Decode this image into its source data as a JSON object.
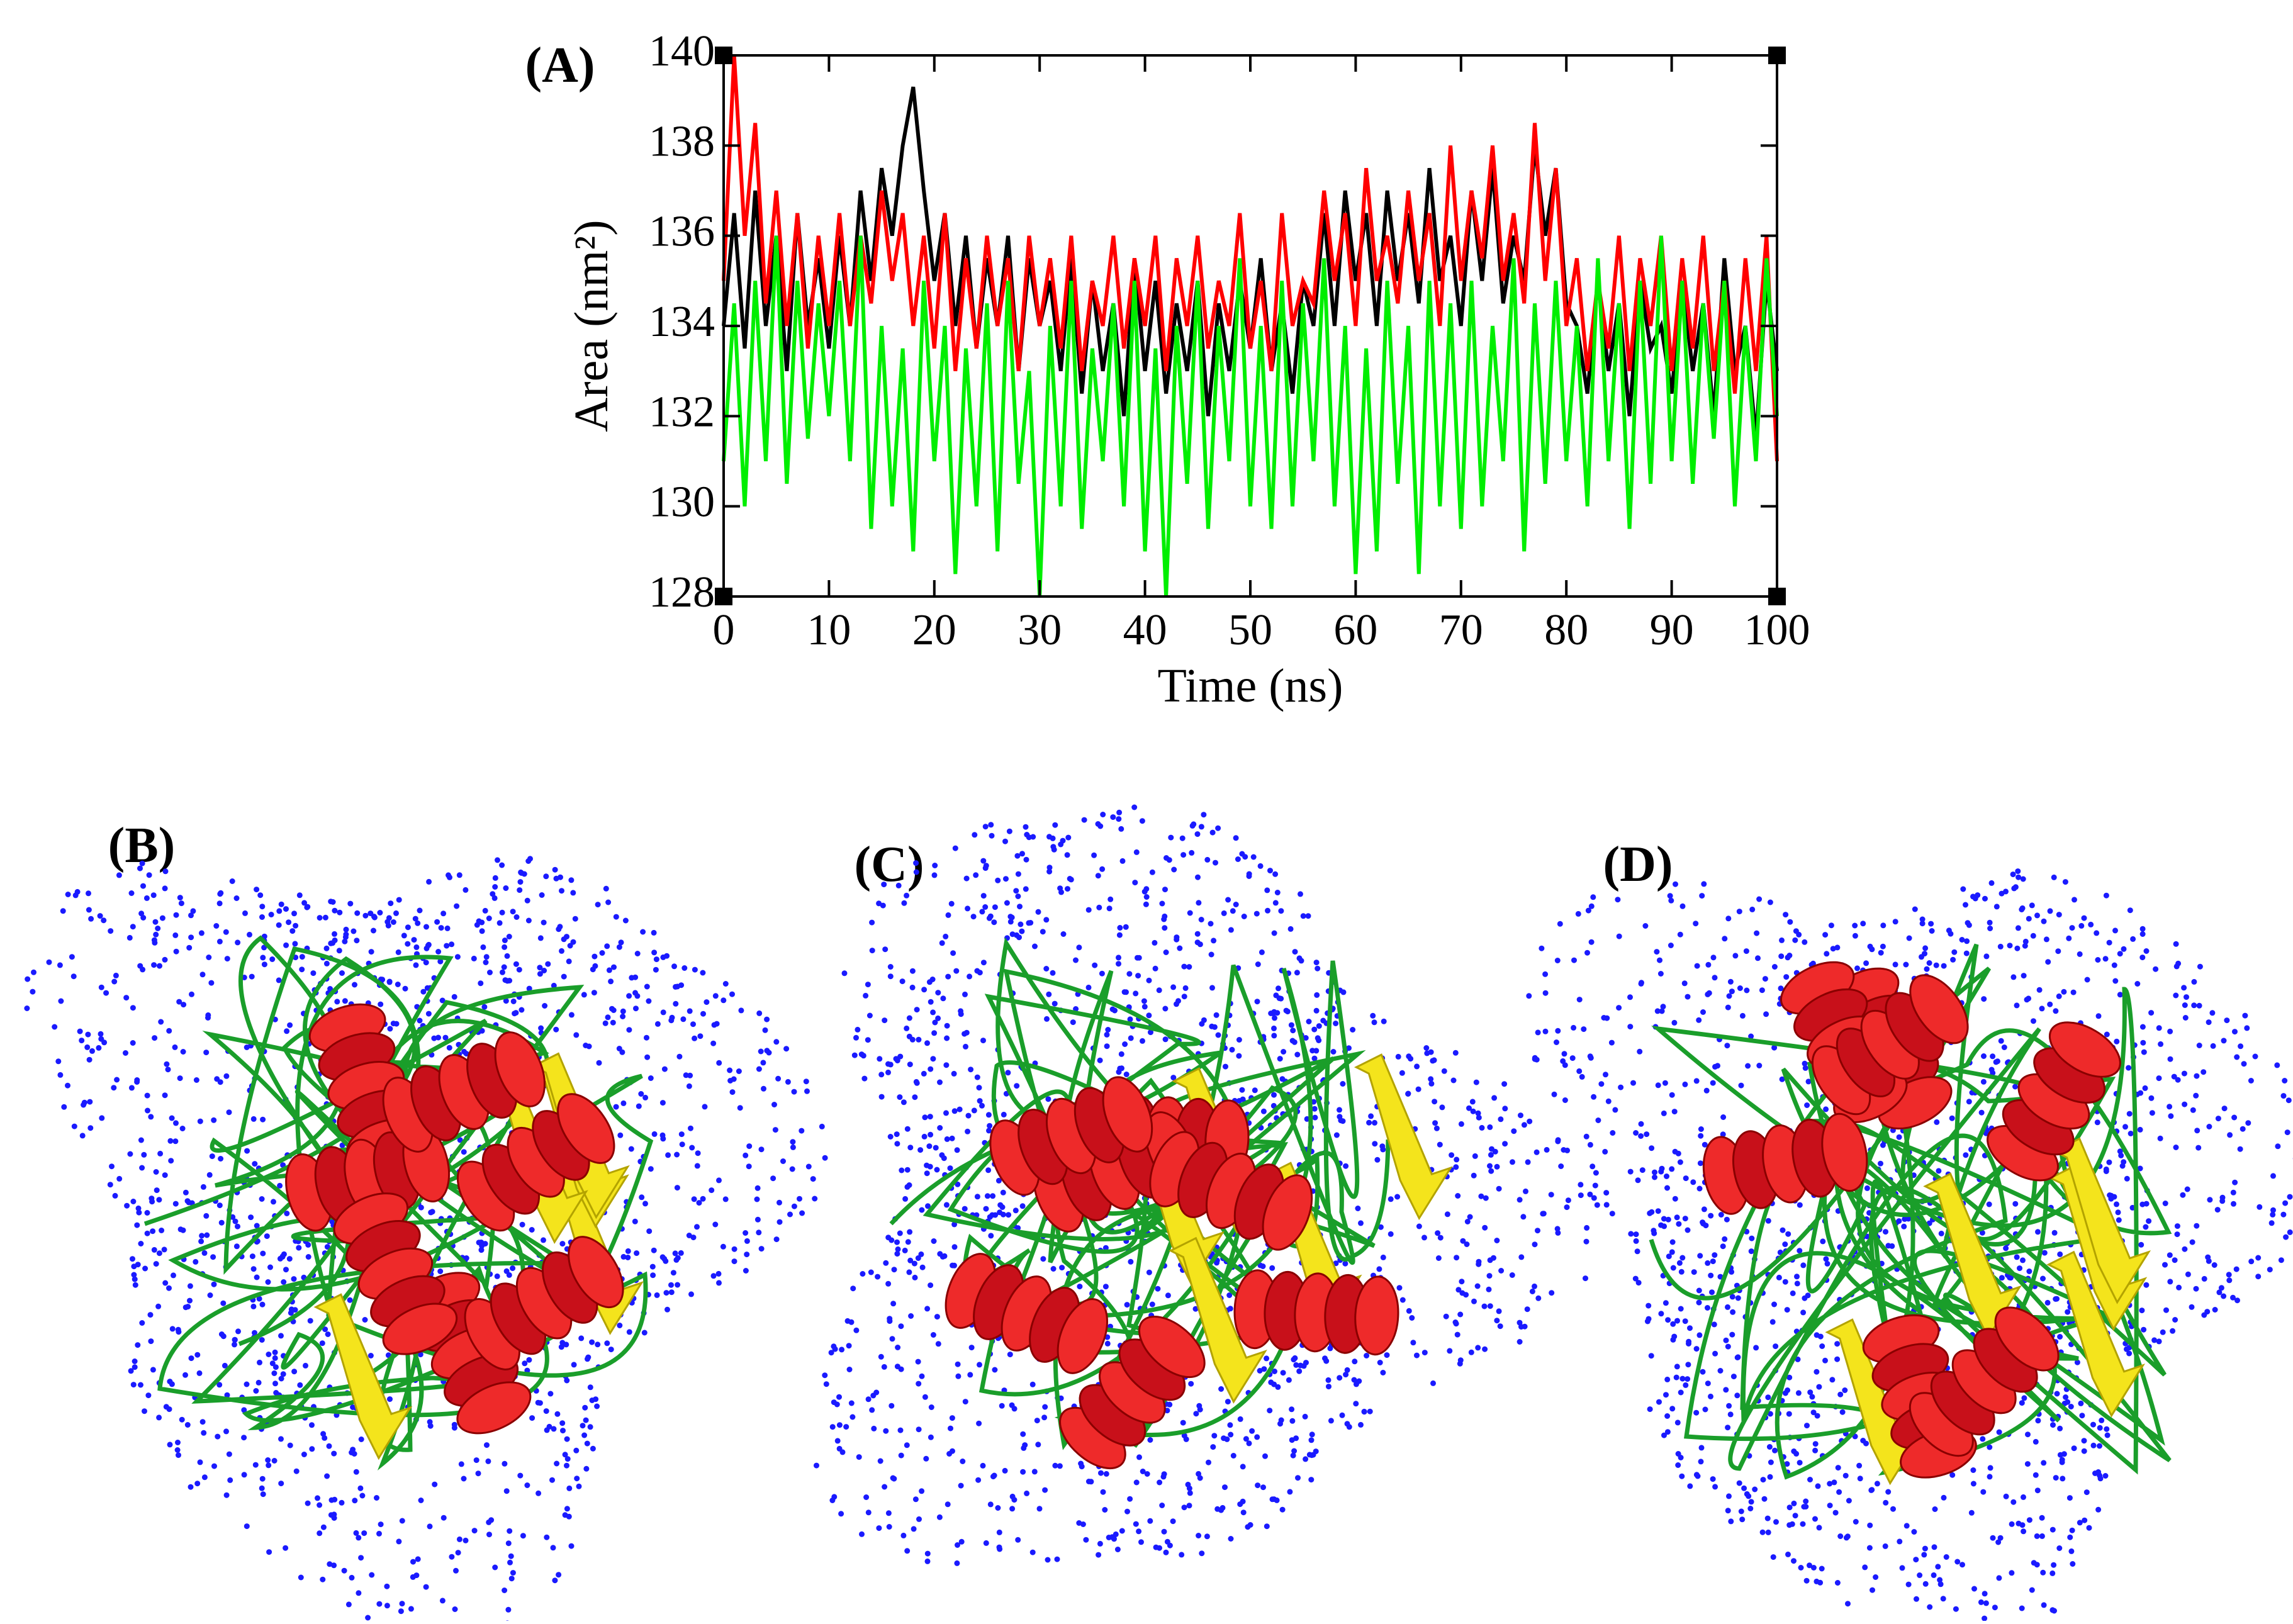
{
  "chart_data": {
    "type": "line",
    "panel_label": "(A)",
    "xlabel": "Time (ns)",
    "ylabel": "Area (nm²)",
    "xlim": [
      0,
      100
    ],
    "ylim": [
      128,
      140
    ],
    "xticks": [
      0,
      10,
      20,
      30,
      40,
      50,
      60,
      70,
      80,
      90,
      100
    ],
    "yticks": [
      128,
      130,
      132,
      134,
      136,
      138,
      140
    ],
    "x": [
      0,
      1,
      2,
      3,
      4,
      5,
      6,
      7,
      8,
      9,
      10,
      11,
      12,
      13,
      14,
      15,
      16,
      17,
      18,
      19,
      20,
      21,
      22,
      23,
      24,
      25,
      26,
      27,
      28,
      29,
      30,
      31,
      32,
      33,
      34,
      35,
      36,
      37,
      38,
      39,
      40,
      41,
      42,
      43,
      44,
      45,
      46,
      47,
      48,
      49,
      50,
      51,
      52,
      53,
      54,
      55,
      56,
      57,
      58,
      59,
      60,
      61,
      62,
      63,
      64,
      65,
      66,
      67,
      68,
      69,
      70,
      71,
      72,
      73,
      74,
      75,
      76,
      77,
      78,
      79,
      80,
      81,
      82,
      83,
      84,
      85,
      86,
      87,
      88,
      89,
      90,
      91,
      92,
      93,
      94,
      95,
      96,
      97,
      98,
      99,
      100
    ],
    "series": [
      {
        "color": "#000000",
        "values": [
          134,
          136.5,
          133.5,
          137,
          134,
          136,
          133,
          136.5,
          134,
          135.5,
          133.5,
          136,
          134,
          137,
          135,
          137.5,
          136,
          138,
          139.3,
          137,
          135,
          136.5,
          134,
          136,
          133.5,
          135.5,
          134,
          136,
          133,
          135.5,
          134,
          135,
          133,
          135.5,
          132.5,
          135,
          133,
          134.5,
          132,
          135.5,
          133,
          135,
          132.5,
          134.5,
          133,
          135,
          132,
          134.5,
          133,
          135,
          133.5,
          135.5,
          133,
          134.5,
          132.5,
          135,
          134,
          136.5,
          134,
          137,
          135,
          136.5,
          134,
          137,
          135,
          136.5,
          134.5,
          137.5,
          135,
          136,
          134,
          137,
          135,
          137.5,
          134.5,
          136,
          135,
          138,
          136,
          137.5,
          134.5,
          134,
          132.5,
          135,
          133,
          134.5,
          132,
          135,
          133.5,
          134,
          132.5,
          135,
          133,
          134.5,
          132,
          135.5,
          133,
          134,
          131.5,
          135,
          133
        ]
      },
      {
        "color": "#ff0000",
        "values": [
          135,
          140,
          136,
          138.5,
          134.5,
          137,
          134,
          136.5,
          133.5,
          136,
          134,
          136.5,
          134,
          136,
          134.5,
          137,
          135,
          136.5,
          134,
          136,
          133.5,
          136.5,
          133,
          135.5,
          133.5,
          136,
          134,
          135.5,
          133,
          136,
          134,
          135.5,
          133.5,
          136,
          133,
          135,
          134,
          136,
          133.5,
          135.5,
          134,
          136,
          133,
          135.5,
          134,
          136,
          133.5,
          135,
          134,
          136.5,
          133.5,
          135,
          133,
          136.5,
          134,
          135,
          134.5,
          137,
          135,
          136.5,
          134,
          137.5,
          135,
          136,
          134.5,
          137,
          135,
          136.5,
          134,
          138,
          135,
          137,
          135.5,
          138,
          135,
          136.5,
          134.5,
          138.5,
          135,
          137.5,
          134,
          135.5,
          133,
          135,
          133.5,
          136,
          133,
          135.5,
          134,
          136,
          133,
          135.5,
          133.5,
          136,
          133,
          135,
          132.5,
          135.5,
          133,
          136,
          131
        ]
      },
      {
        "color": "#00ee00",
        "values": [
          131,
          134.5,
          130,
          135,
          131,
          136,
          130.5,
          135,
          131.5,
          134.5,
          132,
          135,
          131,
          136,
          129.5,
          134,
          130,
          133.5,
          129,
          135,
          131,
          134,
          128.5,
          133.5,
          130,
          134.5,
          129,
          135,
          130.5,
          133,
          128,
          134,
          130,
          135,
          129.5,
          133.5,
          131,
          134.5,
          130,
          135,
          129,
          133.5,
          128,
          134,
          130.5,
          135,
          129.5,
          134,
          131,
          135.5,
          130,
          134,
          129.5,
          135,
          130,
          134.5,
          131,
          135.5,
          130,
          134,
          128.5,
          133.5,
          129,
          135,
          130.5,
          134,
          128.5,
          135,
          130,
          134.5,
          129.5,
          135,
          130,
          134,
          131,
          135.5,
          129,
          134.5,
          130.5,
          135,
          131,
          134,
          130,
          135.5,
          131,
          134.5,
          129.5,
          135,
          130.5,
          136,
          131,
          135,
          130.5,
          134.5,
          131.5,
          135,
          130,
          134,
          131,
          135.5,
          132
        ]
      }
    ]
  },
  "structure_panels": [
    {
      "label": "(B)"
    },
    {
      "label": "(C)"
    },
    {
      "label": "(D)"
    }
  ]
}
